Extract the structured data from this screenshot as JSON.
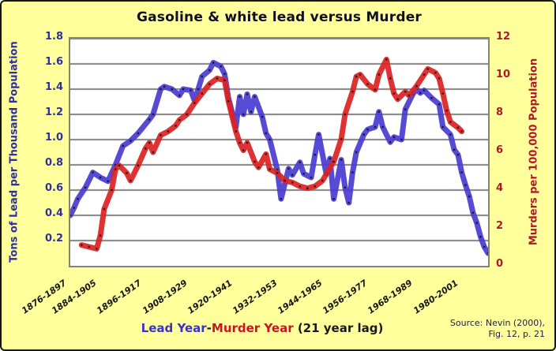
{
  "legend": {
    "lead_label": "Lead Year",
    "separator": "-",
    "murder_label": "Murder Year",
    "lag_note": " (21 year lag)"
  },
  "source": {
    "line1": "Source: Nevin (2000),",
    "line2": "Fig. 12, p. 21"
  },
  "colors": {
    "background": "#ffff9c",
    "lead_line": "#4a3cd2",
    "murder_line": "#dd2222",
    "left_axis_text": "#2f2f9e",
    "right_axis_text": "#b01828",
    "gridline": "#8f8f8f"
  },
  "chart_data": {
    "type": "line",
    "title": "Gasoline & white lead versus Murder",
    "grid": true,
    "x_axis": {
      "tick_labels": [
        "1876-1897",
        "1884-1905",
        "1896-1917",
        "1908-1929",
        "1920-1941",
        "1932-1953",
        "1944-1965",
        "1956-1977",
        "1968-1989",
        "1980-2001"
      ],
      "tick_lead_years": [
        1876,
        1884,
        1896,
        1908,
        1920,
        1932,
        1944,
        1956,
        1968,
        1980
      ],
      "lead_year_range": [
        1876,
        1987
      ],
      "murder_lag_years": 21
    },
    "left_axis": {
      "label": "Tons of Lead per Thousand Population",
      "ticks": [
        0.2,
        0.4,
        0.6,
        0.8,
        1.0,
        1.2,
        1.4,
        1.6,
        1.8
      ],
      "range": [
        0,
        1.8
      ]
    },
    "right_axis": {
      "label": "Murders per 100,000 Population",
      "ticks": [
        0,
        2,
        4,
        6,
        8,
        10,
        12
      ],
      "range": [
        0,
        12
      ]
    },
    "series": [
      {
        "name": "Tons of lead per 1,000 population (gasoline & white lead), by lead year",
        "axis": "left",
        "color": "#4a3cd2",
        "points": [
          [
            1876,
            0.4
          ],
          [
            1877,
            0.46
          ],
          [
            1878,
            0.53
          ],
          [
            1880,
            0.62
          ],
          [
            1882,
            0.74
          ],
          [
            1884,
            0.7
          ],
          [
            1886,
            0.67
          ],
          [
            1888,
            0.8
          ],
          [
            1890,
            0.95
          ],
          [
            1892,
            0.99
          ],
          [
            1894,
            1.05
          ],
          [
            1897,
            1.16
          ],
          [
            1898,
            1.2
          ],
          [
            1900,
            1.4
          ],
          [
            1901,
            1.42
          ],
          [
            1903,
            1.4
          ],
          [
            1905,
            1.35
          ],
          [
            1906,
            1.4
          ],
          [
            1908,
            1.39
          ],
          [
            1909,
            1.31
          ],
          [
            1910,
            1.4
          ],
          [
            1911,
            1.5
          ],
          [
            1913,
            1.55
          ],
          [
            1914,
            1.61
          ],
          [
            1916,
            1.58
          ],
          [
            1917,
            1.52
          ],
          [
            1918,
            1.33
          ],
          [
            1920,
            1.1
          ],
          [
            1921,
            1.34
          ],
          [
            1922,
            1.2
          ],
          [
            1923,
            1.36
          ],
          [
            1924,
            1.22
          ],
          [
            1925,
            1.34
          ],
          [
            1927,
            1.18
          ],
          [
            1928,
            1.05
          ],
          [
            1929,
            1.0
          ],
          [
            1931,
            0.76
          ],
          [
            1932,
            0.53
          ],
          [
            1934,
            0.77
          ],
          [
            1935,
            0.72
          ],
          [
            1937,
            0.82
          ],
          [
            1938,
            0.73
          ],
          [
            1940,
            0.7
          ],
          [
            1941,
            0.88
          ],
          [
            1942,
            1.04
          ],
          [
            1944,
            0.73
          ],
          [
            1945,
            0.85
          ],
          [
            1946,
            0.53
          ],
          [
            1948,
            0.84
          ],
          [
            1949,
            0.62
          ],
          [
            1950,
            0.5
          ],
          [
            1951,
            0.74
          ],
          [
            1952,
            0.9
          ],
          [
            1954,
            1.04
          ],
          [
            1955,
            1.08
          ],
          [
            1957,
            1.1
          ],
          [
            1958,
            1.22
          ],
          [
            1959,
            1.1
          ],
          [
            1961,
            0.98
          ],
          [
            1962,
            1.02
          ],
          [
            1964,
            1.0
          ],
          [
            1965,
            1.24
          ],
          [
            1967,
            1.36
          ],
          [
            1968,
            1.4
          ],
          [
            1969,
            1.37
          ],
          [
            1970,
            1.39
          ],
          [
            1972,
            1.33
          ],
          [
            1974,
            1.28
          ],
          [
            1975,
            1.1
          ],
          [
            1977,
            1.04
          ],
          [
            1978,
            0.92
          ],
          [
            1979,
            0.88
          ],
          [
            1980,
            0.74
          ],
          [
            1981,
            0.64
          ],
          [
            1982,
            0.55
          ],
          [
            1983,
            0.42
          ],
          [
            1984,
            0.34
          ],
          [
            1985,
            0.23
          ],
          [
            1986,
            0.15
          ],
          [
            1987,
            0.1
          ]
        ]
      },
      {
        "name": "Murders per 100,000 population, by murder year (plotted 21 years after lead year)",
        "axis": "right",
        "color": "#dd2222",
        "points": [
          [
            1900,
            1.1
          ],
          [
            1902,
            1.0
          ],
          [
            1904,
            0.9
          ],
          [
            1905,
            1.6
          ],
          [
            1906,
            3.0
          ],
          [
            1908,
            4.0
          ],
          [
            1909,
            5.1
          ],
          [
            1910,
            5.3
          ],
          [
            1912,
            4.9
          ],
          [
            1913,
            4.5
          ],
          [
            1915,
            5.3
          ],
          [
            1917,
            6.2
          ],
          [
            1918,
            6.5
          ],
          [
            1919,
            6.0
          ],
          [
            1921,
            6.9
          ],
          [
            1923,
            7.1
          ],
          [
            1925,
            7.4
          ],
          [
            1926,
            7.7
          ],
          [
            1928,
            8.0
          ],
          [
            1930,
            8.6
          ],
          [
            1932,
            9.1
          ],
          [
            1934,
            9.6
          ],
          [
            1936,
            9.9
          ],
          [
            1938,
            9.8
          ],
          [
            1939,
            8.7
          ],
          [
            1941,
            7.1
          ],
          [
            1942,
            6.5
          ],
          [
            1943,
            6.1
          ],
          [
            1944,
            6.5
          ],
          [
            1946,
            5.5
          ],
          [
            1947,
            5.2
          ],
          [
            1949,
            5.9
          ],
          [
            1950,
            5.1
          ],
          [
            1952,
            4.9
          ],
          [
            1954,
            4.5
          ],
          [
            1956,
            4.4
          ],
          [
            1958,
            4.2
          ],
          [
            1960,
            4.1
          ],
          [
            1962,
            4.2
          ],
          [
            1964,
            4.5
          ],
          [
            1967,
            5.5
          ],
          [
            1969,
            6.7
          ],
          [
            1970,
            8.0
          ],
          [
            1972,
            9.2
          ],
          [
            1973,
            10.0
          ],
          [
            1974,
            10.1
          ],
          [
            1976,
            9.6
          ],
          [
            1978,
            9.3
          ],
          [
            1979,
            10.1
          ],
          [
            1981,
            10.9
          ],
          [
            1982,
            9.9
          ],
          [
            1983,
            9.1
          ],
          [
            1984,
            8.8
          ],
          [
            1986,
            9.2
          ],
          [
            1987,
            9.0
          ],
          [
            1989,
            9.5
          ],
          [
            1991,
            10.1
          ],
          [
            1992,
            10.4
          ],
          [
            1994,
            10.2
          ],
          [
            1995,
            9.9
          ],
          [
            1996,
            9.1
          ],
          [
            1997,
            8.2
          ],
          [
            1998,
            7.6
          ],
          [
            2000,
            7.3
          ],
          [
            2001,
            7.1
          ]
        ]
      }
    ]
  }
}
